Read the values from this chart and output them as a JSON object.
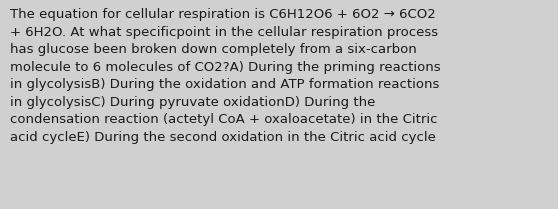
{
  "background_color": "#d0d0d0",
  "text": "The equation for cellular respiration is C6H12O6 + 6O2 → 6CO2\n+ 6H2O. At what specificpoint in the cellular respiration process\nhas glucose been broken down completely from a six-carbon\nmolecule to 6 molecules of CO2?A) During the priming reactions\nin glycolysisB) During the oxidation and ATP formation reactions\nin glycolysisC) During pyruvate oxidationD) During the\ncondensation reaction (actetyl CoA + oxaloacetate) in the Citric\nacid cycleE) During the second oxidation in the Citric acid cycle",
  "font_size": 9.5,
  "font_color": "#1a1a1a",
  "font_family": "DejaVu Sans",
  "fig_width": 5.58,
  "fig_height": 2.09,
  "dpi": 100
}
